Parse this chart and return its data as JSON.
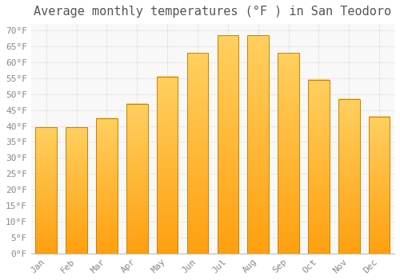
{
  "title": "Average monthly temperatures (°F ) in San Teodoro",
  "months": [
    "Jan",
    "Feb",
    "Mar",
    "Apr",
    "May",
    "Jun",
    "Jul",
    "Aug",
    "Sep",
    "Oct",
    "Nov",
    "Dec"
  ],
  "values": [
    39.5,
    39.5,
    42.5,
    47,
    55.5,
    63,
    68.5,
    68.5,
    63,
    54.5,
    48.5,
    43
  ],
  "bar_color_top": "#FFD060",
  "bar_color_bottom": "#FFA010",
  "bar_color_edge": "#CC8000",
  "background_color": "#FFFFFF",
  "plot_bg_color": "#F8F8F8",
  "grid_color": "#DDDDDD",
  "text_color": "#888888",
  "title_color": "#555555",
  "ylim": [
    0,
    72
  ],
  "yticks": [
    0,
    5,
    10,
    15,
    20,
    25,
    30,
    35,
    40,
    45,
    50,
    55,
    60,
    65,
    70
  ],
  "title_fontsize": 11,
  "tick_fontsize": 8,
  "bar_width": 0.7
}
